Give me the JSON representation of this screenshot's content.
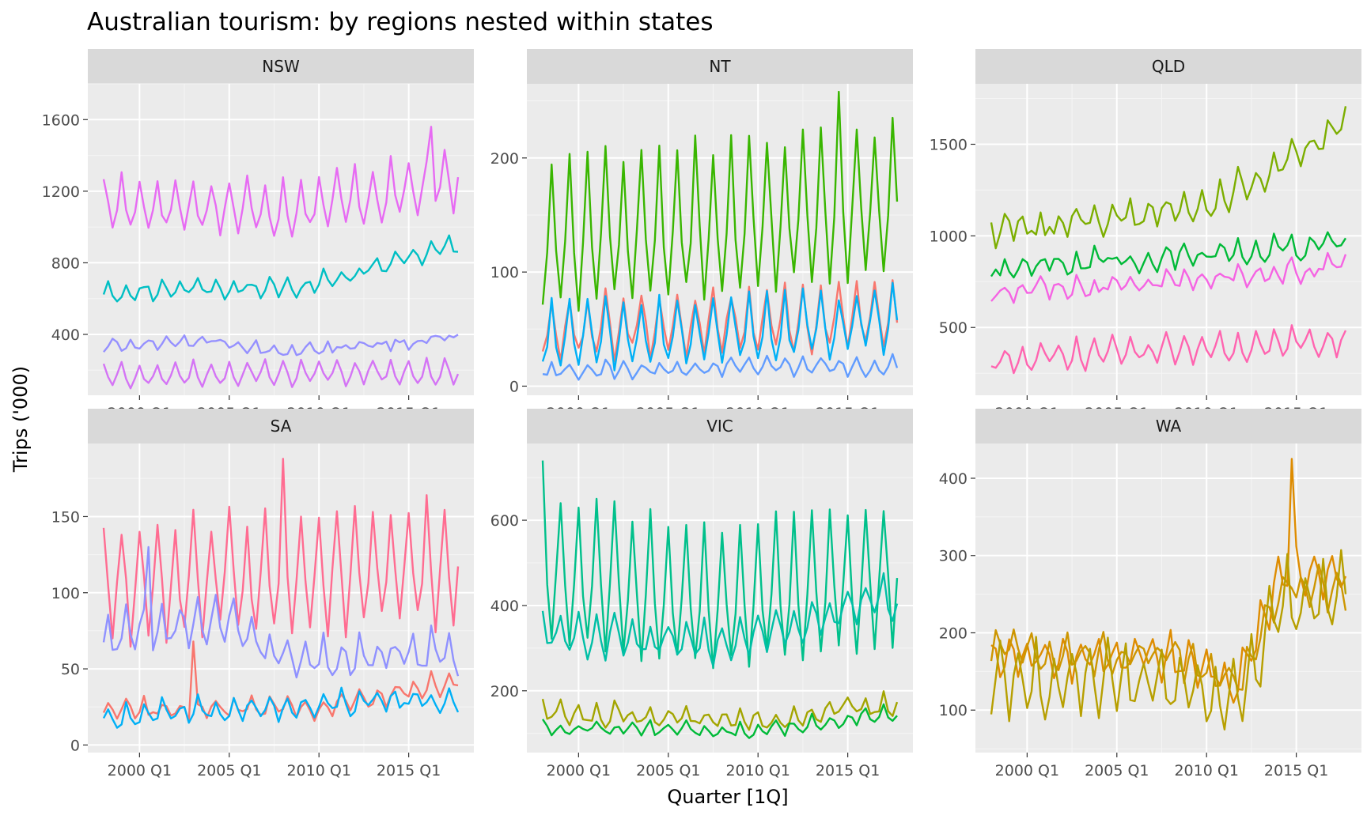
{
  "chart_data": {
    "type": "line",
    "title": "Australian tourism: by regions nested within states",
    "xlabel": "Quarter [1Q]",
    "ylabel": "Trips ('000)",
    "x_start": "1998 Q1",
    "x_end": "2017 Q4",
    "x_ticks": [
      "2000 Q1",
      "2005 Q1",
      "2010 Q1",
      "2015 Q1"
    ],
    "grid": true,
    "facets": [
      {
        "label": "NSW",
        "ylim": [
          60,
          1800
        ],
        "y_ticks": [
          400,
          800,
          1200,
          1600
        ],
        "series": [
          {
            "color": "#E76BF3",
            "mean": 1100,
            "amp": 160,
            "noise": 45,
            "trend": [
              [
                0,
                1130
              ],
              [
                0.5,
                1100
              ],
              [
                1,
                1250
              ]
            ],
            "peak": 0,
            "spike": [
              73,
              1560
            ]
          },
          {
            "color": "#00BFC4",
            "mean": 690,
            "amp": 45,
            "noise": 30,
            "trend": [
              [
                0,
                640
              ],
              [
                0.55,
                660
              ],
              [
                1,
                900
              ]
            ],
            "peak": 1
          },
          {
            "color": "#9590FF",
            "mean": 320,
            "amp": 25,
            "noise": 25,
            "trend": [
              [
                0,
                330
              ],
              [
                0.3,
                370
              ],
              [
                0.5,
                300
              ],
              [
                1,
                380
              ]
            ],
            "peak": 2
          },
          {
            "color": "#D474F5",
            "mean": 170,
            "amp": 70,
            "noise": 20,
            "trend": [
              [
                0,
                170
              ],
              [
                1,
                190
              ]
            ],
            "peak": 0
          }
        ]
      },
      {
        "label": "NT",
        "ylim": [
          -8,
          265
        ],
        "y_ticks": [
          0,
          100,
          200
        ],
        "series": [
          {
            "color": "#39B600",
            "mean": 125,
            "amp": 70,
            "noise": 10,
            "trend": [
              [
                0,
                125
              ],
              [
                1,
                160
              ]
            ],
            "peak": 2,
            "spike": [
              66,
              258
            ]
          },
          {
            "color": "#F8766D",
            "mean": 50,
            "amp": 28,
            "noise": 8,
            "trend": [
              [
                0,
                50
              ],
              [
                1,
                60
              ]
            ],
            "peak": 2
          },
          {
            "color": "#00B0F6",
            "mean": 42,
            "amp": 30,
            "noise": 8,
            "trend": [
              [
                0,
                42
              ],
              [
                1,
                55
              ]
            ],
            "peak": 2
          },
          {
            "color": "#619CFF",
            "mean": 14,
            "amp": 7,
            "noise": 4,
            "trend": [
              [
                0,
                14
              ],
              [
                1,
                18
              ]
            ],
            "peak": 2
          }
        ]
      },
      {
        "label": "QLD",
        "ylim": [
          130,
          1830
        ],
        "y_ticks": [
          500,
          1000,
          1500
        ],
        "series": [
          {
            "color": "#7CAE00",
            "mean": 1100,
            "amp": 70,
            "noise": 50,
            "trend": [
              [
                0,
                1030
              ],
              [
                0.6,
                1150
              ],
              [
                1,
                1600
              ]
            ],
            "peak": 3
          },
          {
            "color": "#00BA38",
            "mean": 880,
            "amp": 50,
            "noise": 40,
            "trend": [
              [
                0,
                820
              ],
              [
                1,
                950
              ]
            ],
            "peak": 3
          },
          {
            "color": "#F564E3",
            "mean": 720,
            "amp": 45,
            "noise": 40,
            "trend": [
              [
                0,
                680
              ],
              [
                1,
                830
              ]
            ],
            "peak": 3
          },
          {
            "color": "#FF64B0",
            "mean": 380,
            "amp": 70,
            "noise": 35,
            "trend": [
              [
                0,
                320
              ],
              [
                1,
                430
              ]
            ],
            "peak": 3
          }
        ]
      },
      {
        "label": "SA",
        "ylim": [
          -5,
          198
        ],
        "y_ticks": [
          0,
          50,
          100,
          150
        ],
        "series": [
          {
            "color": "#FF6C91",
            "mean": 105,
            "amp": 40,
            "noise": 10,
            "trend": [
              [
                0,
                105
              ],
              [
                1,
                115
              ]
            ],
            "peak": 0,
            "spike": [
              40,
              188
            ]
          },
          {
            "color": "#8F91FF",
            "mean": 70,
            "amp": 14,
            "noise": 8,
            "trend": [
              [
                0,
                70
              ],
              [
                0.3,
                85
              ],
              [
                0.55,
                55
              ],
              [
                1,
                60
              ]
            ],
            "peak": 1,
            "spike": [
              10,
              130
            ]
          },
          {
            "color": "#F8766D",
            "mean": 24,
            "amp": 6,
            "noise": 4,
            "trend": [
              [
                0,
                22
              ],
              [
                0.6,
                24
              ],
              [
                1,
                42
              ]
            ],
            "peak": 1,
            "spike": [
              20,
              68
            ]
          },
          {
            "color": "#00B0F6",
            "mean": 22,
            "amp": 7,
            "noise": 5,
            "trend": [
              [
                0,
                18
              ],
              [
                0.5,
                25
              ],
              [
                1,
                30
              ]
            ],
            "peak": 1
          }
        ]
      },
      {
        "label": "VIC",
        "ylim": [
          55,
          780
        ],
        "y_ticks": [
          200,
          400,
          600
        ],
        "series": [
          {
            "color": "#00C08B",
            "mean": 420,
            "amp": 180,
            "noise": 25,
            "trend": [
              [
                0,
                480
              ],
              [
                0.5,
                400
              ],
              [
                1,
                470
              ]
            ],
            "peak": 0,
            "spike": [
              0,
              740
            ]
          },
          {
            "color": "#00BFA6",
            "mean": 330,
            "amp": 45,
            "noise": 20,
            "trend": [
              [
                0,
                330
              ],
              [
                0.5,
                310
              ],
              [
                1,
                420
              ]
            ],
            "peak": 0
          },
          {
            "color": "#A3A500",
            "mean": 140,
            "amp": 20,
            "noise": 15,
            "trend": [
              [
                0,
                150
              ],
              [
                0.6,
                130
              ],
              [
                1,
                170
              ]
            ],
            "peak": 0
          },
          {
            "color": "#00BA38",
            "mean": 115,
            "amp": 15,
            "noise": 10,
            "trend": [
              [
                0,
                110
              ],
              [
                0.6,
                105
              ],
              [
                1,
                150
              ]
            ],
            "peak": 0
          }
        ]
      },
      {
        "label": "WA",
        "ylim": [
          45,
          445
        ],
        "y_ticks": [
          100,
          200,
          300,
          400
        ],
        "series": [
          {
            "color": "#DE8C00",
            "mean": 180,
            "amp": 25,
            "noise": 15,
            "trend": [
              [
                0,
                170
              ],
              [
                0.55,
                165
              ],
              [
                0.7,
                140
              ],
              [
                0.82,
                280
              ],
              [
                1,
                270
              ]
            ],
            "peak": 0,
            "spike": [
              67,
              425
            ]
          },
          {
            "color": "#CD9600",
            "mean": 170,
            "amp": 20,
            "noise": 15,
            "trend": [
              [
                0,
                175
              ],
              [
                0.55,
                165
              ],
              [
                0.7,
                130
              ],
              [
                0.82,
                260
              ],
              [
                1,
                255
              ]
            ],
            "peak": 1
          },
          {
            "color": "#B79F00",
            "mean": 140,
            "amp": 45,
            "noise": 18,
            "trend": [
              [
                0,
                140
              ],
              [
                0.55,
                130
              ],
              [
                0.7,
                110
              ],
              [
                0.82,
                240
              ],
              [
                1,
                250
              ]
            ],
            "peak": 2
          }
        ]
      }
    ]
  }
}
